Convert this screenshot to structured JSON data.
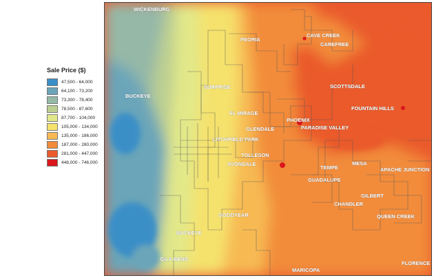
{
  "legend": {
    "title": "Sale Price ($)",
    "items": [
      {
        "range": "47,500 - 64,000",
        "color": "#3b8fc7"
      },
      {
        "range": "64,100 - 73,200",
        "color": "#6ba5b9"
      },
      {
        "range": "73,300 - 78,400",
        "color": "#95b8a7"
      },
      {
        "range": "78,500 - 87,600",
        "color": "#bccf92"
      },
      {
        "range": "87,700 - 104,000",
        "color": "#e2e889"
      },
      {
        "range": "105,000 - 134,000",
        "color": "#f5e26d"
      },
      {
        "range": "135,000 - 186,000",
        "color": "#f7ba52"
      },
      {
        "range": "187,000 - 280,000",
        "color": "#f28c3a"
      },
      {
        "range": "281,000 - 447,000",
        "color": "#ea5a2c"
      },
      {
        "range": "448,000 - 746,000",
        "color": "#d9171c"
      }
    ]
  },
  "map": {
    "cities": {
      "wickenburg": "WICKENBURG",
      "peoria": "PEORIA",
      "cave_creek": "CAVE CREEK",
      "carefree": "CAREFREE",
      "buckeye_north": "BUCKEYE",
      "surprise": "SURPRISE",
      "scottsdale": "SCOTTSDALE",
      "fountain_hills": "FOUNTAIN HILLS",
      "el_mirage": "EL MIRAGE",
      "phoenix": "PHOENIX",
      "glendale": "GLENDALE",
      "paradise_valley": "PARADISE VALLEY",
      "litchfield_park": "LITCHFIELD PARK",
      "tolleson": "TOLLESON",
      "avondale": "AVONDALE",
      "tempe": "TEMPE",
      "mesa": "MESA",
      "apache_junction": "APACHE JUNCTION",
      "guadalupe": "GUADALUPE",
      "gilbert": "GILBERT",
      "chandler": "CHANDLER",
      "goodyear": "GOODYEAR",
      "queen_creek": "QUEEN CREEK",
      "buckeye_south": "BUCKEYE",
      "gila_bend": "GILA BEND",
      "maricopa": "MARICOPA",
      "florence": "FLORENCE"
    }
  }
}
